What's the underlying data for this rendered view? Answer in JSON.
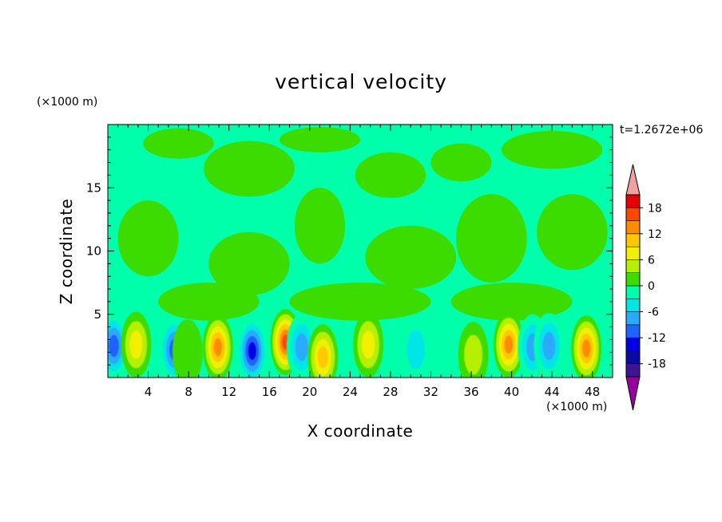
{
  "chart_data": {
    "type": "heatmap",
    "title": "vertical velocity",
    "xlabel": "X coordinate",
    "ylabel": "Z coordinate",
    "x_unit": "(×1000 m)",
    "y_unit": "(×1000 m)",
    "annotation": "t=1.2672e+06",
    "xlim": [
      0,
      50
    ],
    "ylim": [
      0,
      20
    ],
    "x_ticks": [
      4,
      8,
      12,
      16,
      20,
      24,
      28,
      32,
      36,
      40,
      44,
      48
    ],
    "y_ticks": [
      5,
      10,
      15
    ],
    "colorbar": {
      "ticks": [
        18,
        12,
        6,
        0,
        -6,
        -12,
        -18
      ],
      "levels": [
        -21,
        -18,
        -15,
        -12,
        -9,
        -6,
        -3,
        0,
        3,
        6,
        9,
        12,
        15,
        18,
        21
      ],
      "colors": [
        "#3c1496",
        "#0a0aa0",
        "#0000e6",
        "#1e64ff",
        "#2aaaff",
        "#00e6e6",
        "#00ffaa",
        "#3cdc00",
        "#b4f000",
        "#f0f000",
        "#ffc800",
        "#ff8c00",
        "#ff4600",
        "#e60000"
      ],
      "under_color": "#9a00a0",
      "over_color": "#f0a0a0"
    },
    "background_level_color": "#00ffaa",
    "upper_region_blobs": [
      {
        "x": 7,
        "z": 18.5,
        "rx": 3.5,
        "rz": 1.2,
        "value": 1
      },
      {
        "x": 14,
        "z": 16.5,
        "rx": 4.5,
        "rz": 2.2,
        "value": 1
      },
      {
        "x": 21,
        "z": 18.8,
        "rx": 4.0,
        "rz": 1.0,
        "value": 1
      },
      {
        "x": 28,
        "z": 16.0,
        "rx": 3.5,
        "rz": 1.8,
        "value": 1
      },
      {
        "x": 35,
        "z": 17.0,
        "rx": 3.0,
        "rz": 1.5,
        "value": 1
      },
      {
        "x": 44,
        "z": 18.0,
        "rx": 5.0,
        "rz": 1.5,
        "value": 1
      },
      {
        "x": 4,
        "z": 11.0,
        "rx": 3.0,
        "rz": 3.0,
        "value": 1
      },
      {
        "x": 14,
        "z": 9.0,
        "rx": 4.0,
        "rz": 2.5,
        "value": 1
      },
      {
        "x": 21,
        "z": 12.0,
        "rx": 2.5,
        "rz": 3.0,
        "value": 1
      },
      {
        "x": 30,
        "z": 9.5,
        "rx": 4.5,
        "rz": 2.5,
        "value": 1
      },
      {
        "x": 38,
        "z": 11.0,
        "rx": 3.5,
        "rz": 3.5,
        "value": 1
      },
      {
        "x": 46,
        "z": 11.5,
        "rx": 3.5,
        "rz": 3.0,
        "value": 1
      },
      {
        "x": 10,
        "z": 6.0,
        "rx": 5.0,
        "rz": 1.5,
        "value": 1
      },
      {
        "x": 25,
        "z": 6.0,
        "rx": 7.0,
        "rz": 1.5,
        "value": 1
      },
      {
        "x": 40,
        "z": 6.0,
        "rx": 6.0,
        "rz": 1.5,
        "value": 1
      }
    ],
    "cells": [
      {
        "x": 0.6,
        "z": 2.5,
        "value": -9
      },
      {
        "x": 2.8,
        "z": 2.6,
        "value": 7
      },
      {
        "x": 6.6,
        "z": 2.2,
        "value": -10
      },
      {
        "x": 7.9,
        "z": 2.0,
        "value": 2
      },
      {
        "x": 10.9,
        "z": 2.4,
        "value": 12
      },
      {
        "x": 14.3,
        "z": 2.1,
        "value": -14
      },
      {
        "x": 17.6,
        "z": 2.8,
        "value": 15
      },
      {
        "x": 19.2,
        "z": 2.4,
        "value": -6
      },
      {
        "x": 21.3,
        "z": 1.6,
        "value": 9
      },
      {
        "x": 25.8,
        "z": 2.6,
        "value": 7
      },
      {
        "x": 30.5,
        "z": 2.2,
        "value": -3
      },
      {
        "x": 36.2,
        "z": 1.8,
        "value": 5
      },
      {
        "x": 39.7,
        "z": 2.6,
        "value": 13
      },
      {
        "x": 42.1,
        "z": 2.4,
        "value": -8
      },
      {
        "x": 43.7,
        "z": 2.5,
        "value": -8
      },
      {
        "x": 47.4,
        "z": 2.3,
        "value": 14
      }
    ]
  }
}
